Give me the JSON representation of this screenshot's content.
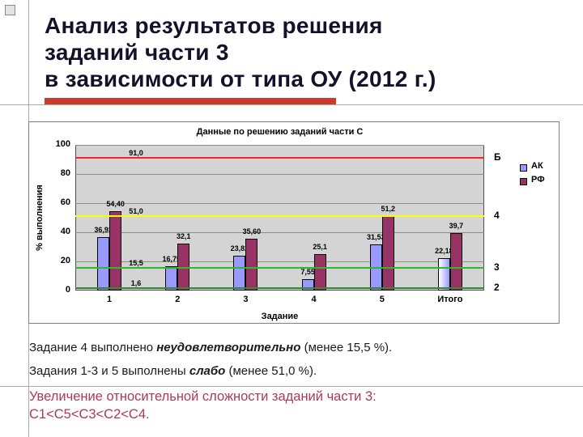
{
  "slide": {
    "title_lines": [
      "Анализ результатов решения",
      "заданий части 3",
      "в зависимости от типа ОУ (2012 г.)"
    ],
    "accent_bar_color": "#cc3b2a",
    "notes": [
      {
        "prefix": "Задание 4 выполнено ",
        "emph": "неудовлетворительно",
        "suffix": " (менее 15,5 %)."
      },
      {
        "prefix": "Задания 1-3 и 5 выполнены ",
        "emph": "слабо",
        "suffix": " (менее 51,0 %)."
      }
    ],
    "conclusion_lines": [
      "Увеличение относительной сложности заданий части 3:",
      "С1<С5<С3<С2<С4."
    ],
    "conclusion_color": "#ab3a55"
  },
  "chart_data": {
    "type": "bar",
    "title": "Данные по решению заданий части С",
    "xlabel": "Задание",
    "ylabel": "% выполнения",
    "categories": [
      "1",
      "2",
      "3",
      "4",
      "5",
      "Итого"
    ],
    "yticks": [
      0,
      20,
      40,
      60,
      80,
      100
    ],
    "ylim": [
      0,
      100
    ],
    "grid": true,
    "legend_position": "right",
    "plot_bg": "#d4d4d4",
    "series": [
      {
        "name": "АК",
        "color": "#9999ff",
        "values": [
          36.93,
          16.75,
          23.82,
          7.55,
          31.53,
          22.18
        ],
        "labels": [
          "36,93",
          "16,75",
          "23,82",
          "7,55",
          "31,53",
          "22,18"
        ],
        "last_bar_gradient": true
      },
      {
        "name": "РФ",
        "color": "#993366",
        "values": [
          54.4,
          32.1,
          35.6,
          25.1,
          51.2,
          39.7
        ],
        "labels": [
          "54,40",
          "32,1",
          "35,60",
          "25,1",
          "51,2",
          "39,7"
        ]
      }
    ],
    "ref_lines": [
      {
        "value": 91.0,
        "label": "91,0",
        "right_label": "Б",
        "color": "#ff2020"
      },
      {
        "value": 51.0,
        "label": "51,0",
        "right_label": "4",
        "color": "#ffff00"
      },
      {
        "value": 15.5,
        "label": "15,5",
        "right_label": "3",
        "color": "#2eb82e"
      },
      {
        "value": 1.6,
        "label": "1,6",
        "right_label": "2",
        "color": "#2e8b2e"
      }
    ]
  }
}
